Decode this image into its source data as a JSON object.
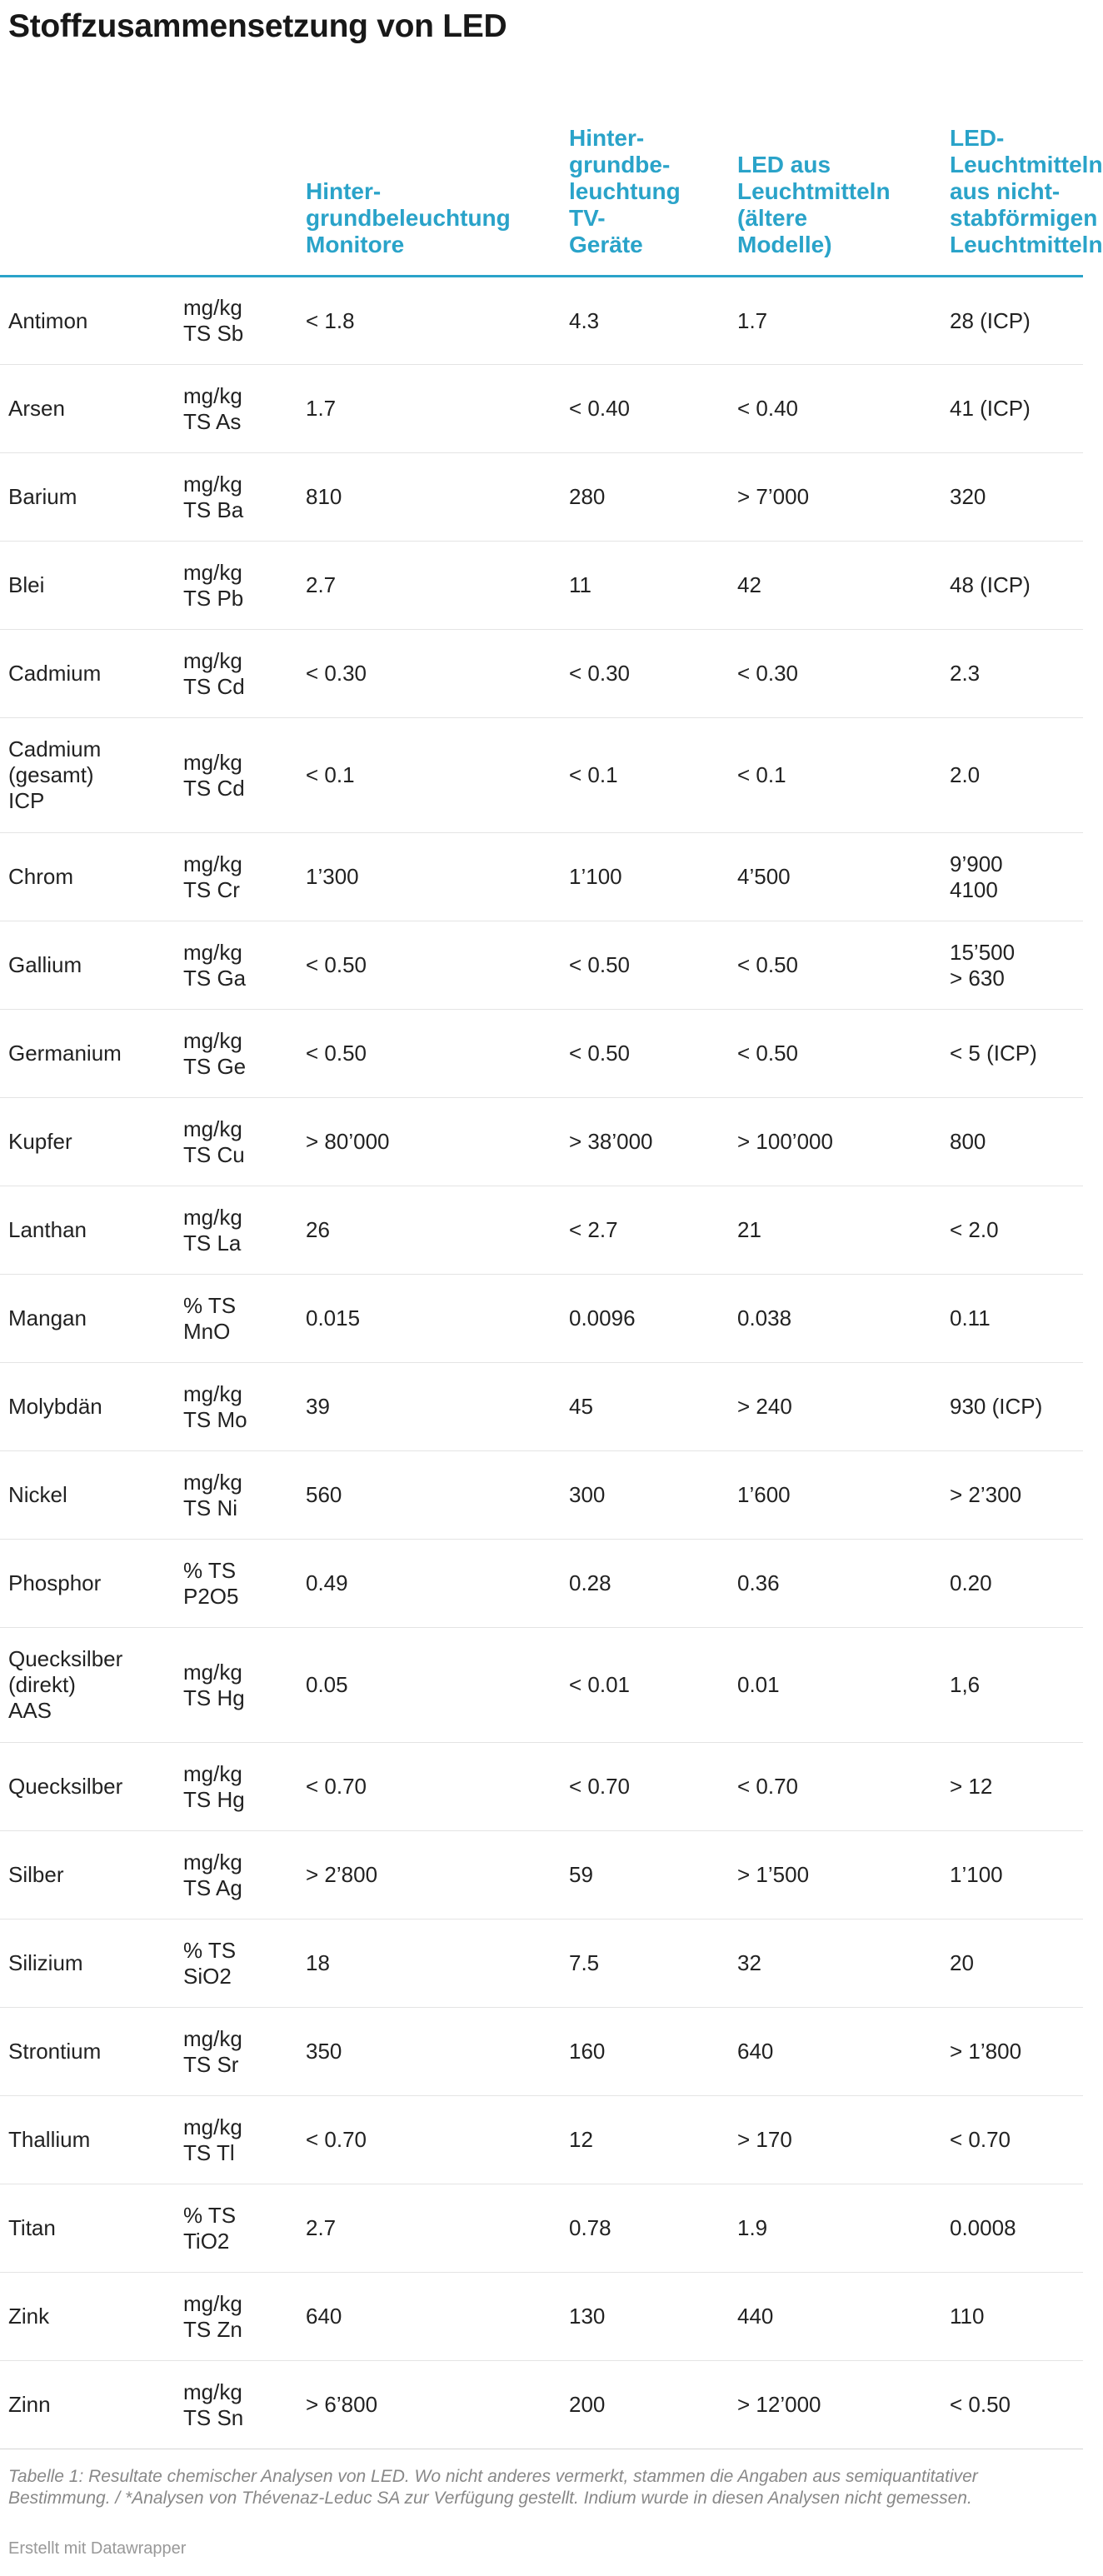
{
  "title": "Stoffzusammensetzung von LED",
  "chart_data": {
    "type": "table",
    "columns": [
      "",
      "",
      "Hinter-\ngrundbeleuchtung\nMonitore",
      "Hinter-\ngrundbe-\nleuchtung\nTV-\nGeräte",
      "LED aus\nLeuchtmitteln\n(ältere\nModelle)",
      "LED-\nLeuchtmitteln\naus nicht-\nstabförmigen\nLeuchtmitteln"
    ],
    "rows": [
      {
        "name": "Antimon",
        "unit": "mg/kg\nTS Sb",
        "values": [
          "< 1.8",
          "4.3",
          "1.7",
          "28 (ICP)"
        ]
      },
      {
        "name": "Arsen",
        "unit": "mg/kg\nTS As",
        "values": [
          "1.7",
          "< 0.40",
          "< 0.40",
          "41 (ICP)"
        ]
      },
      {
        "name": "Barium",
        "unit": "mg/kg\nTS Ba",
        "values": [
          "810",
          "280",
          "> 7’000",
          "320"
        ]
      },
      {
        "name": "Blei",
        "unit": "mg/kg\nTS Pb",
        "values": [
          "2.7",
          "11",
          "42",
          "48 (ICP)"
        ]
      },
      {
        "name": "Cadmium",
        "unit": "mg/kg\nTS Cd",
        "values": [
          "< 0.30",
          "< 0.30",
          "< 0.30",
          "2.3"
        ]
      },
      {
        "name": "Cadmium\n(gesamt)\nICP",
        "unit": "mg/kg\nTS Cd",
        "values": [
          "< 0.1",
          "< 0.1",
          "< 0.1",
          "2.0"
        ]
      },
      {
        "name": "Chrom",
        "unit": "mg/kg\nTS Cr",
        "values": [
          "1’300",
          "1’100",
          "4’500",
          "9’900\n4100"
        ]
      },
      {
        "name": "Gallium",
        "unit": "mg/kg\nTS Ga",
        "values": [
          "< 0.50",
          "< 0.50",
          "< 0.50",
          "15’500\n> 630"
        ]
      },
      {
        "name": "Germanium",
        "unit": "mg/kg\nTS Ge",
        "values": [
          "< 0.50",
          "< 0.50",
          "< 0.50",
          "< 5 (ICP)"
        ]
      },
      {
        "name": "Kupfer",
        "unit": "mg/kg\nTS Cu",
        "values": [
          "> 80’000",
          "> 38’000",
          "> 100’000",
          "800"
        ]
      },
      {
        "name": "Lanthan",
        "unit": "mg/kg\nTS La",
        "values": [
          "26",
          "< 2.7",
          "21",
          "< 2.0"
        ]
      },
      {
        "name": "Mangan",
        "unit": "% TS\nMnO",
        "values": [
          "0.015",
          "0.0096",
          "0.038",
          "0.11"
        ]
      },
      {
        "name": "Molybdän",
        "unit": "mg/kg\nTS Mo",
        "values": [
          "39",
          "45",
          "> 240",
          "930 (ICP)"
        ]
      },
      {
        "name": "Nickel",
        "unit": "mg/kg\nTS Ni",
        "values": [
          "560",
          "300",
          "1’600",
          "> 2’300"
        ]
      },
      {
        "name": "Phosphor",
        "unit": "% TS\nP2O5",
        "values": [
          "0.49",
          "0.28",
          "0.36",
          "0.20"
        ]
      },
      {
        "name": "Quecksilber\n(direkt)\nAAS",
        "unit": "mg/kg\nTS Hg",
        "values": [
          "0.05",
          "< 0.01",
          "0.01",
          "1,6"
        ]
      },
      {
        "name": "Quecksilber",
        "unit": "mg/kg\nTS Hg",
        "values": [
          "< 0.70",
          "< 0.70",
          "< 0.70",
          "> 12"
        ]
      },
      {
        "name": "Silber",
        "unit": "mg/kg\nTS Ag",
        "values": [
          "> 2’800",
          "59",
          "> 1’500",
          "1’100"
        ]
      },
      {
        "name": "Silizium",
        "unit": "% TS\nSiO2",
        "values": [
          "18",
          "7.5",
          "32",
          "20"
        ]
      },
      {
        "name": "Strontium",
        "unit": "mg/kg\nTS Sr",
        "values": [
          "350",
          "160",
          "640",
          "> 1’800"
        ]
      },
      {
        "name": "Thallium",
        "unit": "mg/kg\nTS Tl",
        "values": [
          "< 0.70",
          "12",
          "> 170",
          "< 0.70"
        ]
      },
      {
        "name": "Titan",
        "unit": "% TS\nTiO2",
        "values": [
          "2.7",
          "0.78",
          "1.9",
          "0.0008"
        ]
      },
      {
        "name": "Zink",
        "unit": "mg/kg\nTS Zn",
        "values": [
          "640",
          "130",
          "440",
          "110"
        ]
      },
      {
        "name": "Zinn",
        "unit": "mg/kg\nTS Sn",
        "values": [
          "> 6’800",
          "200",
          "> 12’000",
          "< 0.50"
        ]
      }
    ]
  },
  "footnote": "Tabelle 1: Resultate chemischer Analysen von LED. Wo nicht anderes vermerkt, stammen die Angaben aus semiquantitativer Bestimmung. / *Analysen von Thévenaz-Leduc SA zur Verfügung gestellt. Indium wurde in diesen Analysen nicht gemessen.",
  "credit": "Erstellt mit Datawrapper",
  "colors": {
    "accent": "#2aa3c9",
    "text": "#181818",
    "footnote": "#888888"
  }
}
